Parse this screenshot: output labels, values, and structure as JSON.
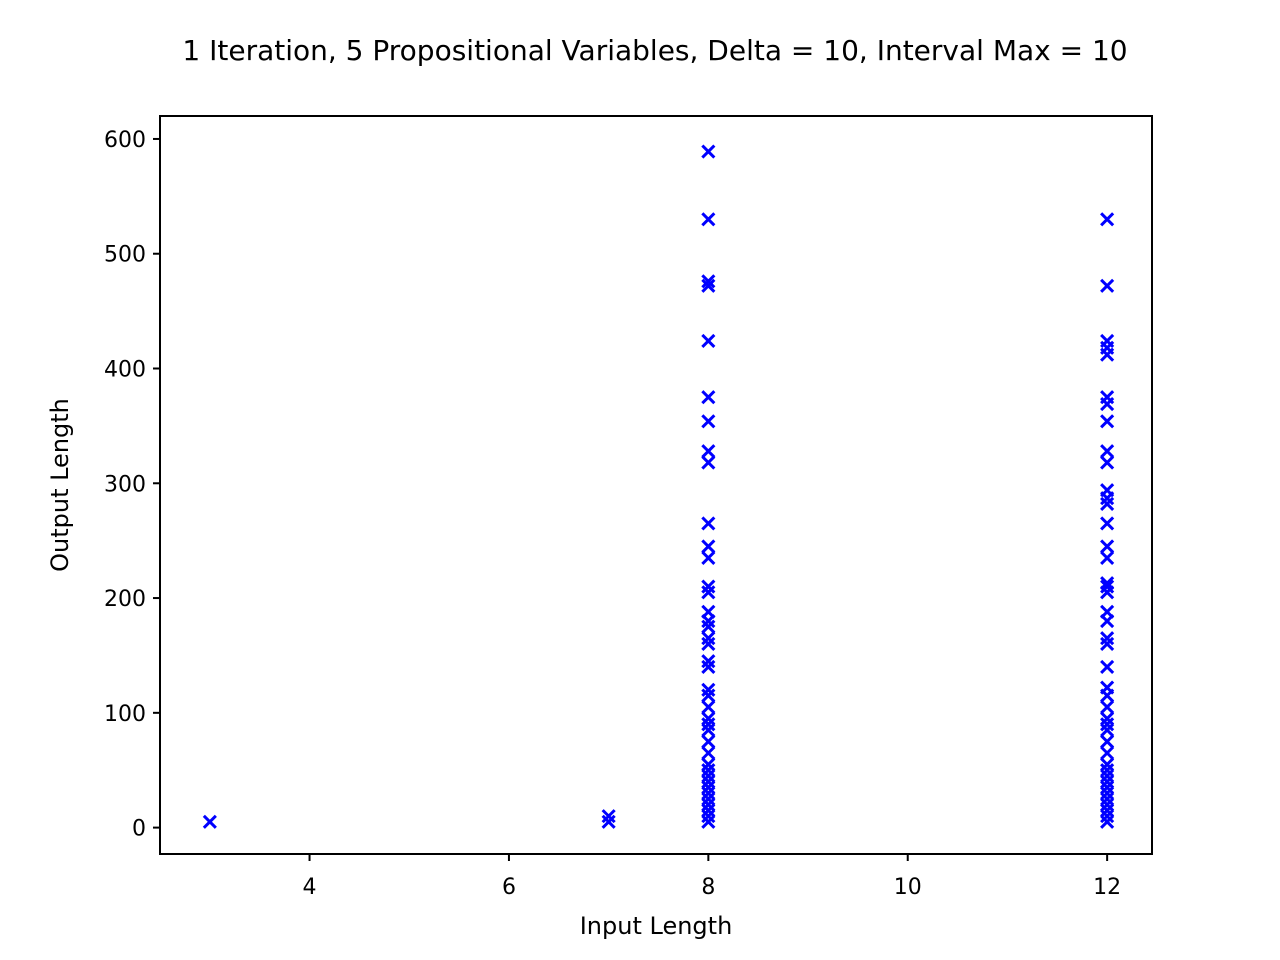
{
  "chart_data": {
    "type": "scatter",
    "title": "1 Iteration, 5 Propositional Variables, Delta = 10, Interval Max = 10",
    "xlabel": "Input Length",
    "ylabel": "Output Length",
    "xlim": [
      2.5,
      12.45
    ],
    "ylim": [
      -23,
      620
    ],
    "xticks": [
      4,
      6,
      8,
      10,
      12
    ],
    "yticks": [
      0,
      100,
      200,
      300,
      400,
      500,
      600
    ],
    "marker": "x",
    "color": "#0000ff",
    "grid": false,
    "legend": "none",
    "series": [
      {
        "points": [
          [
            3,
            5
          ],
          [
            7,
            5
          ],
          [
            7,
            10
          ],
          [
            8,
            5
          ],
          [
            8,
            10
          ],
          [
            8,
            15
          ],
          [
            8,
            20
          ],
          [
            8,
            25
          ],
          [
            8,
            30
          ],
          [
            8,
            35
          ],
          [
            8,
            40
          ],
          [
            8,
            45
          ],
          [
            8,
            50
          ],
          [
            8,
            55
          ],
          [
            8,
            65
          ],
          [
            8,
            75
          ],
          [
            8,
            85
          ],
          [
            8,
            90
          ],
          [
            8,
            95
          ],
          [
            8,
            105
          ],
          [
            8,
            115
          ],
          [
            8,
            120
          ],
          [
            8,
            140
          ],
          [
            8,
            145
          ],
          [
            8,
            160
          ],
          [
            8,
            165
          ],
          [
            8,
            175
          ],
          [
            8,
            180
          ],
          [
            8,
            188
          ],
          [
            8,
            205
          ],
          [
            8,
            210
          ],
          [
            8,
            235
          ],
          [
            8,
            245
          ],
          [
            8,
            265
          ],
          [
            8,
            318
          ],
          [
            8,
            328
          ],
          [
            8,
            354
          ],
          [
            8,
            375
          ],
          [
            8,
            424
          ],
          [
            8,
            472
          ],
          [
            8,
            476
          ],
          [
            8,
            530
          ],
          [
            8,
            589
          ],
          [
            12,
            5
          ],
          [
            12,
            10
          ],
          [
            12,
            15
          ],
          [
            12,
            20
          ],
          [
            12,
            25
          ],
          [
            12,
            30
          ],
          [
            12,
            35
          ],
          [
            12,
            40
          ],
          [
            12,
            45
          ],
          [
            12,
            50
          ],
          [
            12,
            55
          ],
          [
            12,
            65
          ],
          [
            12,
            75
          ],
          [
            12,
            85
          ],
          [
            12,
            90
          ],
          [
            12,
            95
          ],
          [
            12,
            105
          ],
          [
            12,
            115
          ],
          [
            12,
            122
          ],
          [
            12,
            140
          ],
          [
            12,
            160
          ],
          [
            12,
            165
          ],
          [
            12,
            180
          ],
          [
            12,
            188
          ],
          [
            12,
            205
          ],
          [
            12,
            210
          ],
          [
            12,
            213
          ],
          [
            12,
            235
          ],
          [
            12,
            245
          ],
          [
            12,
            265
          ],
          [
            12,
            282
          ],
          [
            12,
            287
          ],
          [
            12,
            294
          ],
          [
            12,
            318
          ],
          [
            12,
            328
          ],
          [
            12,
            354
          ],
          [
            12,
            369
          ],
          [
            12,
            375
          ],
          [
            12,
            412
          ],
          [
            12,
            418
          ],
          [
            12,
            424
          ],
          [
            12,
            472
          ],
          [
            12,
            530
          ]
        ]
      }
    ]
  }
}
